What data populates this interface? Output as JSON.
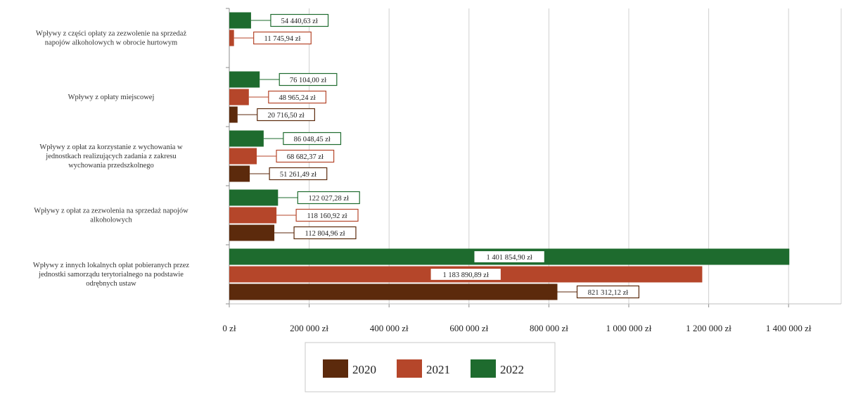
{
  "chart_data": {
    "type": "bar",
    "orientation": "horizontal",
    "categories": [
      "Wpływy z części opłaty za zezwolenie na sprzedaż napojów alkoholowych w obrocie hurtowym",
      "Wpływy z opłaty miejscowej",
      "Wpływy z opłat za korzystanie z wychowania w jednostkach realizujących zadania z zakresu wychowania przedszkolnego",
      "Wpływy z opłat za zezwolenia na sprzedaż napojów alkoholowych",
      "Wpływy z innych lokalnych opłat pobieranych przez jednostki samorządu terytorialnego na podstawie odrębnych ustaw"
    ],
    "series": [
      {
        "name": "2020",
        "color": "#5c2a0c",
        "values": [
          null,
          20716.5,
          51261.49,
          112804.96,
          821312.12
        ],
        "labels": [
          "",
          "20 716,50 zł",
          "51 261,49 zł",
          "112 804,96 zł",
          "821 312,12 zł"
        ]
      },
      {
        "name": "2021",
        "color": "#b5462a",
        "values": [
          11745.94,
          48965.24,
          68682.37,
          118160.92,
          1183890.89
        ],
        "labels": [
          "11 745,94 zł",
          "48 965,24 zł",
          "68 682,37 zł",
          "118 160,92 zł",
          "1 183 890,89 zł"
        ]
      },
      {
        "name": "2022",
        "color": "#1e6b2e",
        "values": [
          54440.63,
          76104.0,
          86048.45,
          122027.28,
          1401854.9
        ],
        "labels": [
          "54 440,63 zł",
          "76 104,00 zł",
          "86 048,45 zł",
          "122 027,28 zł",
          "1 401 854,90 zł"
        ]
      }
    ],
    "xlim": [
      0,
      1400000
    ],
    "xticks": [
      0,
      200000,
      400000,
      600000,
      800000,
      1000000,
      1200000,
      1400000
    ],
    "xtick_labels": [
      "0 zł",
      "200 000 zł",
      "400 000 zł",
      "600 000 zł",
      "800 000 zł",
      "1 000 000 zł",
      "1 200 000 zł",
      "1 400 000 zł"
    ],
    "grid": "vertical",
    "legend_position": "bottom",
    "title": "",
    "xlabel": "",
    "ylabel": ""
  }
}
